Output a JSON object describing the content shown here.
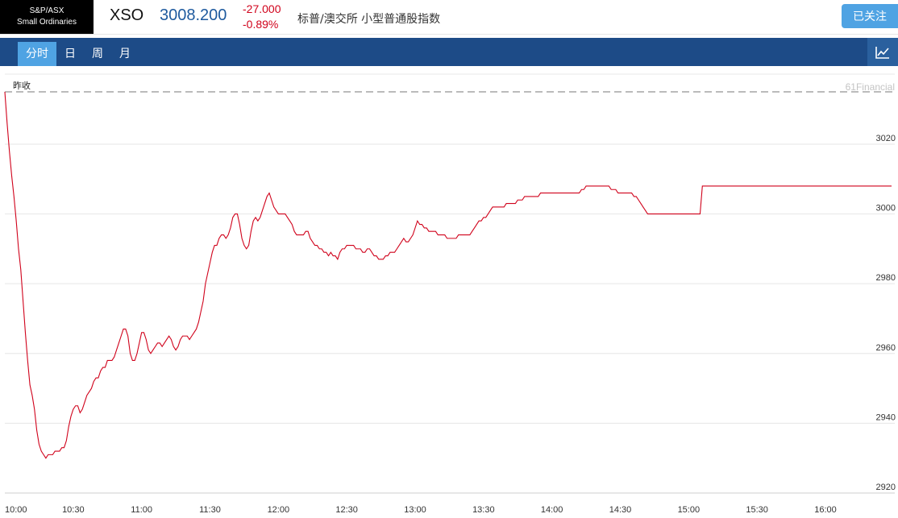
{
  "header": {
    "logo_line1": "S&P/ASX",
    "logo_line2": "Small Ordinaries",
    "symbol": "XSO",
    "price": "3008.200",
    "change": "-27.000",
    "change_pct": "-0.89%",
    "description": "标普/澳交所 小型普通股指数",
    "follow_label": "已关注"
  },
  "tabs": [
    {
      "label": "分时",
      "active": true
    },
    {
      "label": "日",
      "active": false
    },
    {
      "label": "周",
      "active": false
    },
    {
      "label": "月",
      "active": false
    }
  ],
  "colors": {
    "line": "#d0021b",
    "accent": "#4fa3e3",
    "navbar": "#1d4b87"
  },
  "chart_data": {
    "type": "line",
    "prev_close_label": "昨收",
    "watermark": "61Financial",
    "prev_close": 3035,
    "ylim": [
      2920,
      3035
    ],
    "yticks": [
      3020,
      3000,
      2980,
      2960,
      2940,
      2920
    ],
    "xticks": [
      "10:00",
      "10:30",
      "11:00",
      "11:30",
      "12:00",
      "12:30",
      "13:00",
      "13:30",
      "14:00",
      "14:30",
      "15:00",
      "15:30",
      "16:00"
    ],
    "x_tick_minutes": [
      0,
      30,
      60,
      90,
      120,
      150,
      180,
      210,
      240,
      270,
      300,
      330,
      360
    ],
    "grid": true,
    "series": [
      {
        "minutes": [
          0,
          1,
          2,
          3,
          4,
          5,
          6,
          7,
          8,
          9,
          10,
          11,
          12,
          13,
          14,
          15,
          16,
          17,
          18,
          19,
          20,
          21,
          22,
          23,
          24,
          25,
          26,
          27,
          28,
          29,
          30,
          31,
          32,
          33,
          34,
          35,
          36,
          37,
          38,
          39,
          40,
          41,
          42,
          43,
          44,
          45,
          46,
          47,
          48,
          49,
          50,
          51,
          52,
          53,
          54,
          55,
          56,
          57,
          58,
          59,
          60,
          61,
          62,
          63,
          64,
          65,
          66,
          67,
          68,
          69,
          70,
          71,
          72,
          73,
          74,
          75,
          76,
          77,
          78,
          79,
          80,
          81,
          82,
          83,
          84,
          85,
          86,
          87,
          88,
          89,
          90,
          91,
          92,
          93,
          94,
          95,
          96,
          97,
          98,
          99,
          100,
          101,
          102,
          103,
          104,
          105,
          106,
          107,
          108,
          109,
          110,
          111,
          112,
          113,
          114,
          115,
          116,
          117,
          118,
          119,
          120,
          121,
          122,
          123,
          124,
          125,
          126,
          127,
          128,
          129,
          130,
          131,
          132,
          133,
          134,
          135,
          136,
          137,
          138,
          139,
          140,
          141,
          142,
          143,
          144,
          145,
          146,
          147,
          148,
          149,
          150,
          151,
          152,
          153,
          154,
          155,
          156,
          157,
          158,
          159,
          160,
          161,
          162,
          163,
          164,
          165,
          166,
          167,
          168,
          169,
          170,
          171,
          172,
          173,
          174,
          175,
          176,
          177,
          178,
          179,
          180,
          181,
          182,
          183,
          184,
          185,
          186,
          187,
          188,
          189,
          190,
          191,
          192,
          193,
          194,
          195,
          196,
          197,
          198,
          199,
          200,
          201,
          202,
          203,
          204,
          205,
          206,
          207,
          208,
          209,
          210,
          211,
          212,
          213,
          214,
          215,
          216,
          217,
          218,
          219,
          220,
          221,
          222,
          223,
          224,
          225,
          226,
          227,
          228,
          229,
          230,
          231,
          232,
          233,
          234,
          235,
          236,
          237,
          238,
          239,
          240,
          241,
          242,
          243,
          244,
          245,
          246,
          247,
          248,
          249,
          250,
          251,
          252,
          253,
          254,
          255,
          256,
          257,
          258,
          259,
          260,
          261,
          262,
          263,
          264,
          265,
          266,
          267,
          268,
          269,
          270,
          271,
          272,
          273,
          274,
          275,
          276,
          277,
          278,
          279,
          280,
          281,
          282,
          283,
          284,
          285,
          286,
          287,
          288,
          289,
          290,
          291,
          292,
          293,
          294,
          295,
          296,
          297,
          298,
          299,
          300,
          301,
          302,
          303,
          304,
          305,
          306,
          307,
          308,
          309,
          310,
          311,
          312,
          313,
          314,
          315,
          316,
          317,
          318,
          319,
          320,
          321,
          322,
          323,
          324,
          325,
          326,
          327,
          328,
          329,
          330,
          331,
          332,
          333,
          334,
          335,
          336,
          337,
          338,
          339,
          340,
          341,
          342,
          343,
          344,
          345,
          346,
          347,
          348,
          349,
          350,
          351,
          352,
          353,
          354,
          355,
          356,
          357,
          358,
          359,
          360,
          361,
          362,
          363,
          364,
          365,
          366,
          367,
          368,
          369,
          370,
          371,
          372,
          373,
          374,
          375,
          376,
          377,
          378,
          379,
          380,
          381,
          382,
          383,
          384,
          385,
          386,
          387,
          388,
          389
        ],
        "values": [
          3035,
          3026,
          3018,
          3011,
          3005,
          2998,
          2990,
          2984,
          2975,
          2966,
          2958,
          2951,
          2948,
          2944,
          2938,
          2934,
          2932,
          2931,
          2930,
          2931,
          2931,
          2931,
          2932,
          2932,
          2932,
          2933,
          2933,
          2935,
          2939,
          2942,
          2944,
          2945,
          2945,
          2943,
          2944,
          2946,
          2948,
          2949,
          2950,
          2952,
          2953,
          2953,
          2955,
          2956,
          2956,
          2958,
          2958,
          2958,
          2959,
          2961,
          2963,
          2965,
          2967,
          2967,
          2965,
          2960,
          2958,
          2958,
          2960,
          2963,
          2966,
          2966,
          2964,
          2961,
          2960,
          2961,
          2962,
          2963,
          2963,
          2962,
          2963,
          2964,
          2965,
          2964,
          2962,
          2961,
          2962,
          2964,
          2965,
          2965,
          2965,
          2964,
          2965,
          2966,
          2967,
          2969,
          2972,
          2975,
          2980,
          2983,
          2986,
          2989,
          2991,
          2991,
          2993,
          2994,
          2994,
          2993,
          2994,
          2996,
          2999,
          3000,
          3000,
          2997,
          2993,
          2991,
          2990,
          2991,
          2995,
          2998,
          2999,
          2998,
          2999,
          3001,
          3003,
          3005,
          3006,
          3004,
          3002,
          3001,
          3000,
          3000,
          3000,
          3000,
          2999,
          2998,
          2997,
          2995,
          2994,
          2994,
          2994,
          2994,
          2995,
          2995,
          2993,
          2992,
          2991,
          2991,
          2990,
          2990,
          2989,
          2989,
          2988,
          2989,
          2988,
          2988,
          2987,
          2989,
          2990,
          2990,
          2991,
          2991,
          2991,
          2991,
          2990,
          2990,
          2990,
          2989,
          2989,
          2990,
          2990,
          2989,
          2988,
          2988,
          2987,
          2987,
          2987,
          2988,
          2988,
          2989,
          2989,
          2989,
          2990,
          2991,
          2992,
          2993,
          2992,
          2992,
          2993,
          2994,
          2996,
          2998,
          2997,
          2997,
          2996,
          2996,
          2995,
          2995,
          2995,
          2995,
          2994,
          2994,
          2994,
          2994,
          2993,
          2993,
          2993,
          2993,
          2993,
          2994,
          2994,
          2994,
          2994,
          2994,
          2994,
          2995,
          2996,
          2997,
          2998,
          2998,
          2999,
          2999,
          3000,
          3001,
          3002,
          3002,
          3002,
          3002,
          3002,
          3002,
          3003,
          3003,
          3003,
          3003,
          3003,
          3004,
          3004,
          3004,
          3005,
          3005,
          3005,
          3005,
          3005,
          3005,
          3005,
          3006,
          3006,
          3006,
          3006,
          3006,
          3006,
          3006,
          3006,
          3006,
          3006,
          3006,
          3006,
          3006,
          3006,
          3006,
          3006,
          3006,
          3006,
          3007,
          3007,
          3008,
          3008,
          3008,
          3008,
          3008,
          3008,
          3008,
          3008,
          3008,
          3008,
          3008,
          3007,
          3007,
          3007,
          3006,
          3006,
          3006,
          3006,
          3006,
          3006,
          3006,
          3005,
          3005,
          3004,
          3003,
          3002,
          3001,
          3000,
          3000,
          3000,
          3000,
          3000,
          3000,
          3000,
          3000,
          3000,
          3000,
          3000,
          3000,
          3000,
          3000,
          3000,
          3000,
          3000,
          3000,
          3000,
          3000,
          3000,
          3000,
          3000,
          3000,
          3008,
          3008,
          3008,
          3008,
          3008,
          3008,
          3008,
          3008,
          3008,
          3008,
          3008,
          3008,
          3008,
          3008,
          3008,
          3008,
          3008,
          3008,
          3008,
          3008,
          3008,
          3008,
          3008,
          3008,
          3008,
          3008,
          3008,
          3008,
          3008,
          3008,
          3008,
          3008,
          3008,
          3008,
          3008,
          3008,
          3008,
          3008,
          3008,
          3008,
          3008,
          3008,
          3008,
          3008,
          3008,
          3008,
          3008,
          3008,
          3008,
          3008,
          3008,
          3008,
          3008,
          3008,
          3008,
          3008,
          3008,
          3008,
          3008,
          3008,
          3008,
          3008,
          3008,
          3008,
          3008,
          3008,
          3008,
          3008,
          3008,
          3008,
          3008,
          3008,
          3008,
          3008,
          3008,
          3008,
          3008,
          3008,
          3008,
          3008,
          3008,
          3008,
          3008,
          3008,
          3008,
          3008,
          3008,
          3008,
          3008,
          3008,
          3008
        ]
      }
    ]
  }
}
